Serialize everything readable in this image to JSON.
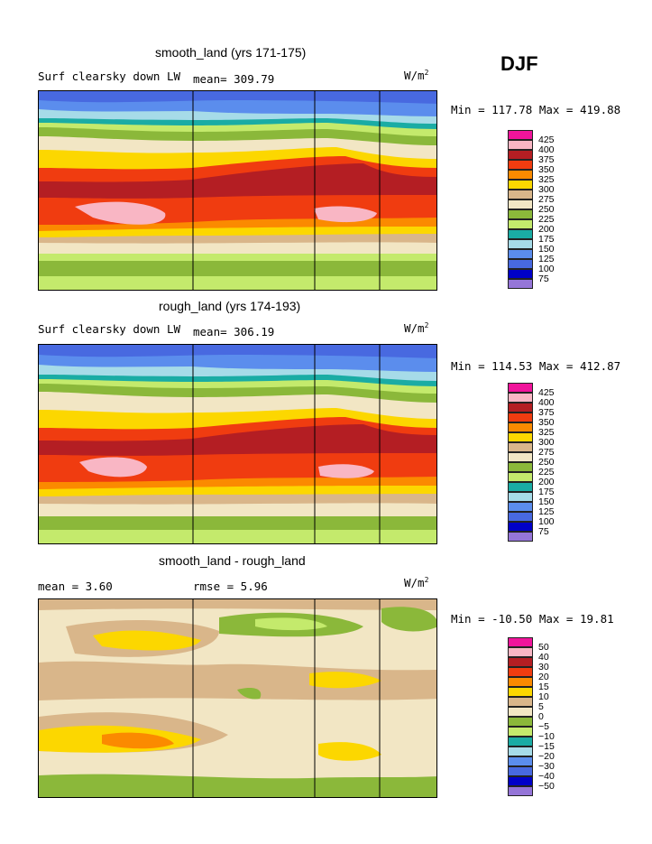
{
  "season": "DJF",
  "panels": [
    {
      "title": "smooth_land (yrs 171-175)",
      "left_label": "Surf clearsky down LW",
      "center_label": "mean= 309.79",
      "units": "W/m",
      "units_sup": "2",
      "minmax": "Min = 117.78 Max = 419.88",
      "colorbar": {
        "ticks": [
          "425",
          "400",
          "375",
          "350",
          "325",
          "300",
          "275",
          "250",
          "225",
          "200",
          "175",
          "150",
          "125",
          "100",
          "75"
        ],
        "colors": [
          "#f0149b",
          "#f9b6c4",
          "#b41e23",
          "#f03c10",
          "#fb8a00",
          "#fcd700",
          "#d9b68a",
          "#f2e6c4",
          "#8bb83a",
          "#c4ea6c",
          "#1aaca4",
          "#a6dbe8",
          "#5b8ded",
          "#4869e0",
          "#0000c8",
          "#9575d8"
        ]
      }
    },
    {
      "title": "rough_land (yrs 174-193)",
      "left_label": "Surf clearsky down LW",
      "center_label": "mean= 306.19",
      "units": "W/m",
      "units_sup": "2",
      "minmax": "Min = 114.53 Max = 412.87",
      "colorbar": {
        "ticks": [
          "425",
          "400",
          "375",
          "350",
          "325",
          "300",
          "275",
          "250",
          "225",
          "200",
          "175",
          "150",
          "125",
          "100",
          "75"
        ],
        "colors": [
          "#f0149b",
          "#f9b6c4",
          "#b41e23",
          "#f03c10",
          "#fb8a00",
          "#fcd700",
          "#d9b68a",
          "#f2e6c4",
          "#8bb83a",
          "#c4ea6c",
          "#1aaca4",
          "#a6dbe8",
          "#5b8ded",
          "#4869e0",
          "#0000c8",
          "#9575d8"
        ]
      }
    },
    {
      "title": "smooth_land - rough_land",
      "left_label": "mean =    3.60",
      "center_label": "rmse =    5.96",
      "units": "W/m",
      "units_sup": "2",
      "minmax": "Min = -10.50 Max =  19.81",
      "colorbar": {
        "ticks": [
          "50",
          "40",
          "30",
          "20",
          "15",
          "10",
          "5",
          "0",
          "−5",
          "−10",
          "−15",
          "−20",
          "−30",
          "−40",
          "−50"
        ],
        "colors": [
          "#f0149b",
          "#f9b6c4",
          "#b41e23",
          "#f03c10",
          "#fb8a00",
          "#fcd700",
          "#d9b68a",
          "#f2e6c4",
          "#8bb83a",
          "#c4ea6c",
          "#1aaca4",
          "#a6dbe8",
          "#5b8ded",
          "#4869e0",
          "#0000c8",
          "#9575d8"
        ]
      }
    }
  ],
  "chart_data": [
    {
      "type": "heatmap",
      "title": "smooth_land (yrs 171-175)",
      "field": "Surf clearsky down LW",
      "units": "W/m2",
      "mean": 309.79,
      "min": 117.78,
      "max": 419.88,
      "contour_levels": [
        75,
        100,
        125,
        150,
        175,
        200,
        225,
        250,
        275,
        300,
        325,
        350,
        375,
        400,
        425
      ]
    },
    {
      "type": "heatmap",
      "title": "rough_land (yrs 174-193)",
      "field": "Surf clearsky down LW",
      "units": "W/m2",
      "mean": 306.19,
      "min": 114.53,
      "max": 412.87,
      "contour_levels": [
        75,
        100,
        125,
        150,
        175,
        200,
        225,
        250,
        275,
        300,
        325,
        350,
        375,
        400,
        425
      ]
    },
    {
      "type": "heatmap",
      "title": "smooth_land - rough_land",
      "units": "W/m2",
      "mean": 3.6,
      "rmse": 5.96,
      "min": -10.5,
      "max": 19.81,
      "contour_levels": [
        -50,
        -40,
        -30,
        -20,
        -15,
        -10,
        -5,
        0,
        5,
        10,
        15,
        20,
        30,
        40,
        50
      ]
    }
  ]
}
